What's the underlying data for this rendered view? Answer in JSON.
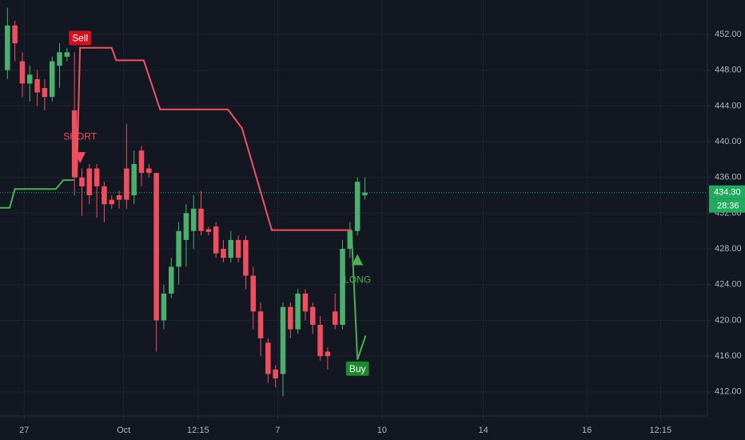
{
  "chart_data": {
    "type": "candlestick",
    "xlim": [
      -1,
      94
    ],
    "xticks": [
      {
        "value": 2.25,
        "label": "27"
      },
      {
        "value": 15.6,
        "label": "Oct"
      },
      {
        "value": 25.6,
        "label": "12:15"
      },
      {
        "value": 36.3,
        "label": "7"
      },
      {
        "value": 50.3,
        "label": "10"
      },
      {
        "value": 63.9,
        "label": "14"
      },
      {
        "value": 77.8,
        "label": "16"
      },
      {
        "value": 87.7,
        "label": "12:15"
      }
    ],
    "ylim": [
      409.3,
      455.85
    ],
    "yticks": [
      {
        "value": 412,
        "label": "412.00"
      },
      {
        "value": 416,
        "label": "416.00"
      },
      {
        "value": 420,
        "label": "420.00"
      },
      {
        "value": 424,
        "label": "424.00"
      },
      {
        "value": 428,
        "label": "428.00"
      },
      {
        "value": 432,
        "label": "432.00"
      },
      {
        "value": 436,
        "label": "436.00"
      },
      {
        "value": 440,
        "label": "440.00"
      },
      {
        "value": 444,
        "label": "444.00"
      },
      {
        "value": 448,
        "label": "448.00"
      },
      {
        "value": 452,
        "label": "452.00"
      }
    ],
    "grid": true,
    "up_color": "#4caf6e",
    "down_color": "#f04e5e",
    "open": [
      448,
      453,
      449,
      446.5,
      447,
      446,
      445,
      448.5,
      449.5,
      443.5,
      436,
      437,
      437,
      435,
      433.5,
      434,
      437,
      434,
      439,
      437,
      436.5,
      420,
      423,
      426,
      429,
      430,
      432.5,
      430.2,
      430.5,
      428,
      427,
      429,
      429,
      425,
      421,
      417.5,
      414.5,
      414,
      421.5,
      419,
      423,
      421.5,
      419.5,
      416.5,
      421,
      419.5,
      428,
      430,
      434
    ],
    "high": [
      455,
      453.5,
      450,
      448.5,
      448,
      447,
      449.5,
      451,
      450.5,
      450,
      437,
      437.5,
      437.5,
      435.5,
      434,
      434.5,
      442,
      439,
      439.5,
      437.5,
      436.5,
      424,
      427,
      431,
      433,
      434,
      434.5,
      430.5,
      431,
      429,
      430,
      429.5,
      429.5,
      426,
      422,
      418,
      415,
      422,
      422,
      423.5,
      423.5,
      422,
      420.5,
      417,
      423,
      429,
      431,
      436,
      436
    ],
    "low": [
      447,
      449,
      445,
      444.5,
      444,
      443.5,
      444.5,
      446,
      449,
      434,
      431.7,
      433,
      431.5,
      431,
      432.5,
      432.5,
      432.5,
      433,
      435,
      436,
      416.5,
      419,
      422.5,
      424,
      426,
      428,
      429.5,
      429.5,
      427,
      426.5,
      426.5,
      426.5,
      423.5,
      419,
      416,
      413,
      412.5,
      411.5,
      418,
      418.5,
      420,
      418.5,
      415.5,
      414.5,
      419,
      419,
      427,
      429.5,
      433.5
    ],
    "close": [
      453,
      451,
      446.5,
      447.5,
      445.5,
      445,
      449,
      450,
      450,
      436,
      435,
      434,
      435,
      433,
      433,
      433.5,
      433.5,
      437.5,
      436.5,
      436.5,
      420,
      423,
      426,
      430,
      432,
      432.5,
      430,
      429.9,
      427.5,
      427,
      429,
      427,
      425,
      421,
      418,
      414,
      413.5,
      421.5,
      419,
      423,
      421,
      419.5,
      416,
      416,
      419.5,
      428,
      430,
      435.5,
      434.3
    ],
    "lines": [
      {
        "color": "#4caf50",
        "x": [
          -1,
          0.3,
          1,
          6.5,
          7.5,
          8.9
        ],
        "values": [
          432.6,
          432.6,
          434.7,
          434.7,
          435.7,
          435.7
        ]
      },
      {
        "color": "#f0525f",
        "x": [
          9.3,
          9.75,
          14.0,
          14.6,
          18.3,
          20.5,
          29.6,
          31.5,
          35.5,
          46.2
        ],
        "values": [
          436,
          450.5,
          450.5,
          449.1,
          449.1,
          443.6,
          443.6,
          441.5,
          430.1,
          430.1
        ]
      },
      {
        "color": "#4caf50",
        "x": [
          46.2,
          47.0,
          48.1
        ],
        "values": [
          430.1,
          415.6,
          418.3
        ]
      }
    ],
    "annotations": [
      {
        "text": "Sell",
        "x": 9.75,
        "y": 451.6,
        "style": "box",
        "color": "#d0101f"
      },
      {
        "text": "SHORT",
        "x": 9.75,
        "y": 440.5,
        "style": "text",
        "color": "#f04e5e"
      },
      {
        "text": "LONG",
        "x": 47.0,
        "y": 424.5,
        "style": "text",
        "color": "#4caf50"
      },
      {
        "text": "Buy",
        "x": 47.0,
        "y": 414.6,
        "style": "box",
        "color": "#1e8a2e"
      }
    ],
    "markers": [
      {
        "shape": "down",
        "x": 9.75,
        "y": 438.2,
        "color": "#f04e5e"
      },
      {
        "shape": "up",
        "x": 47.0,
        "y": 426.8,
        "color": "#4caf50"
      }
    ],
    "last_price": {
      "value": 434.3,
      "label": "434.30"
    },
    "countdown": "28:36",
    "last_price_color": "#22ab5e"
  }
}
